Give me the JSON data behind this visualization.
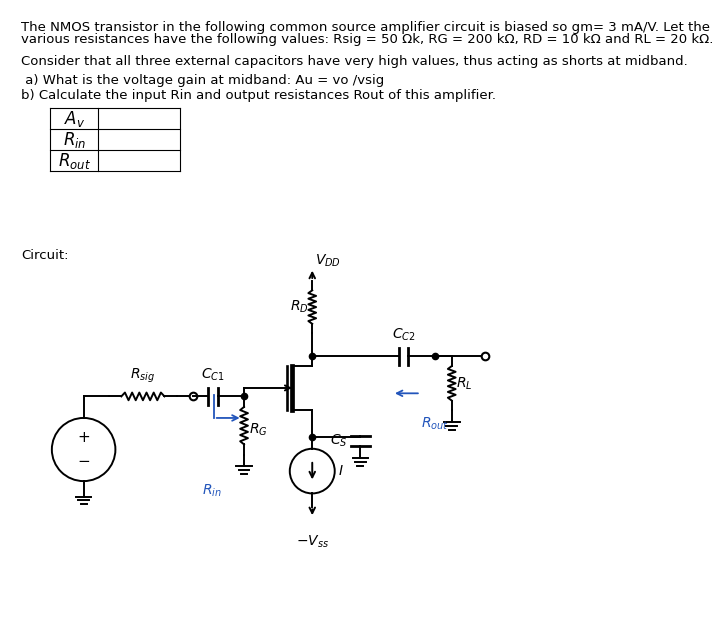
{
  "bg_color": "#ffffff",
  "text_color": "#000000",
  "blue_color": "#2255BB",
  "line1": "The NMOS transistor in the following common source amplifier circuit is biased so gm= 3 mA/V. Let the",
  "line1b": "various resistances have the following values: Rsig = 50 Ωk, RG = 200 kΩ, RD = 10 kΩ and RL = 20 kΩ.",
  "line2": "Consider that all three external capacitors have very high values, thus acting as shorts at midband.",
  "line3": " a) What is the voltage gain at midband: Au = vo /vsig",
  "line4": "b) Calculate the input Rin and output resistances Rout of this amplifier.",
  "circuit_label": "Circuit:",
  "fs_main": 9.5
}
